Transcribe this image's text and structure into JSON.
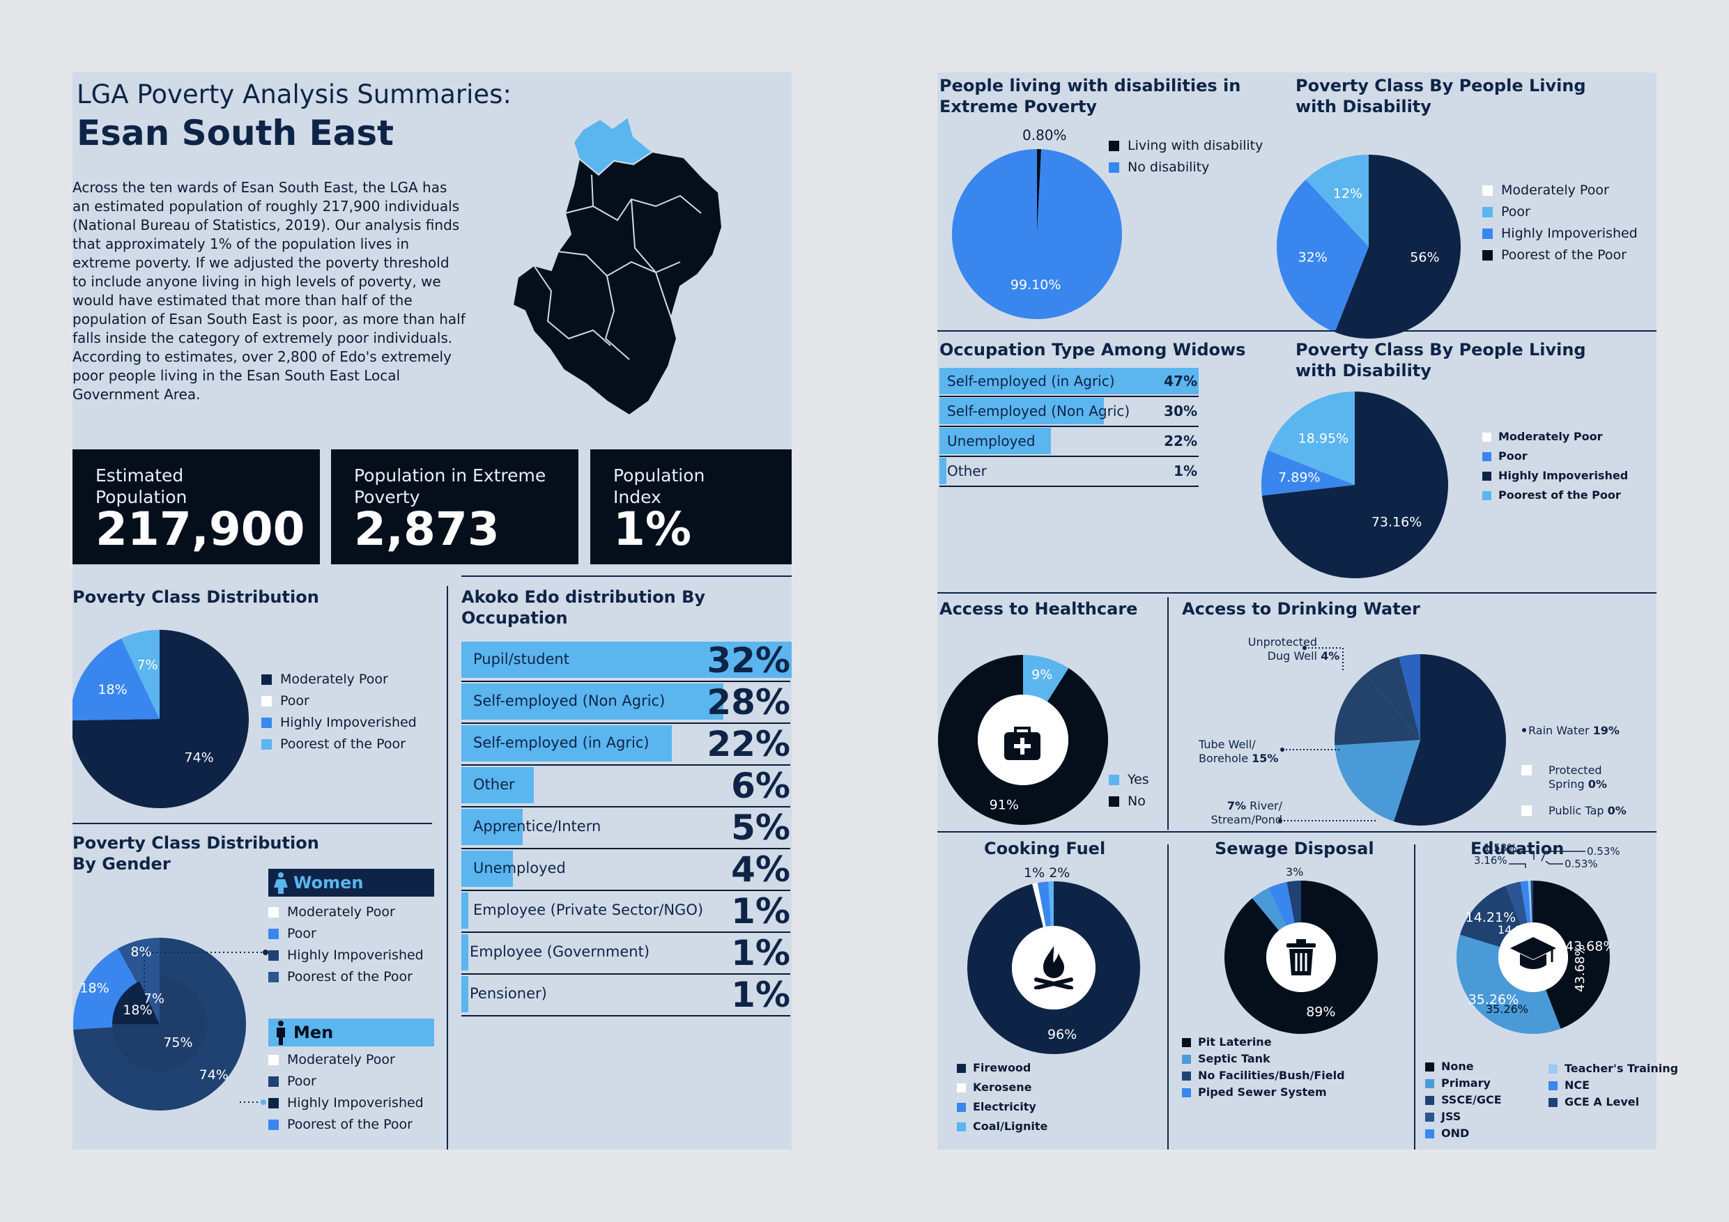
{
  "left": {
    "kicker": "LGA Poverty Analysis Summaries:",
    "lga_name": "Esan South East",
    "intro": "Across the ten wards of Esan South East, the LGA has an estimated population of roughly 217,900 individuals (National Bureau of Statistics, 2019). Our analysis finds that approximately 1% of the population lives in extreme poverty. If we adjusted the poverty threshold to include anyone living in high levels of poverty, we would have estimated that more than half of the population of Esan South East is poor, as more than half falls inside the category of extremely poor individuals. According to estimates, over 2,800 of Edo's extremely poor people living in the Esan South East Local Government Area.",
    "stats": [
      {
        "label": "Estimated Population",
        "value": "217,900"
      },
      {
        "label": "Population in Extreme Poverty",
        "value": "2,873"
      },
      {
        "label": "Population Index",
        "value": "1%"
      }
    ],
    "map_icon": "lga-map-silhouette"
  },
  "colors": {
    "navy": "#0e2447",
    "black": "#050f1c",
    "blue": "#3a86ef",
    "light_blue": "#5bb5ef",
    "mid_blue": "#1f4272",
    "white": "#ffffff",
    "bg": "#d1dbe7"
  },
  "chart_data": [
    {
      "id": "poverty-class-distribution",
      "type": "pie",
      "title": "Poverty Class Distribution",
      "legend": [
        "Moderately Poor",
        "Poor",
        "Highly Impoverished",
        "Poorest of the Poor"
      ],
      "legend_colors": [
        "#0e2447",
        "#ffffff",
        "#3a86ef",
        "#5bb5ef"
      ],
      "slices": [
        {
          "value": 74,
          "label": "74%",
          "color": "#0e2447"
        },
        {
          "value": 18,
          "label": "18%",
          "color": "#3a86ef"
        },
        {
          "value": 7,
          "label": "7%",
          "color": "#5bb5ef"
        }
      ]
    },
    {
      "id": "poverty-class-by-gender",
      "type": "pie",
      "title": "Poverty Class Distribution By Gender",
      "groups": [
        {
          "name": "Women",
          "legend": [
            "Moderately Poor",
            "Poor",
            "Highly Impoverished",
            "Poorest of the Poor"
          ],
          "legend_colors": [
            "#ffffff",
            "#3a86ef",
            "#1f4272",
            "#2a5592"
          ],
          "slices": [
            {
              "value": 75,
              "label": "75%",
              "color": "#1f3d6b"
            },
            {
              "value": 18,
              "label": "18%",
              "color": "#0e2447"
            },
            {
              "value": 7,
              "label": "7%",
              "color": "#2a5592"
            }
          ]
        },
        {
          "name": "Men",
          "legend": [
            "Moderately Poor",
            "Poor",
            "Highly Impoverished",
            "Poorest of the Poor"
          ],
          "legend_colors": [
            "#ffffff",
            "#1f4272",
            "#0e2447",
            "#3a86ef"
          ],
          "slices": [
            {
              "value": 74,
              "label": "74%",
              "color": "#1f4272"
            },
            {
              "value": 18,
              "label": "18%",
              "color": "#3a86ef"
            },
            {
              "value": 8,
              "label": "8%",
              "color": "#2a5592"
            }
          ]
        }
      ]
    },
    {
      "id": "occupation-distribution",
      "type": "bar",
      "title": "Akoko Edo distribution By Occupation",
      "categories": [
        "Pupil/student",
        "Self-employed (Non Agric)",
        "Self-employed (in Agric)",
        "Other",
        "Apprentice/Intern",
        "Unemployed",
        "Employee (Private Sector/NGO)",
        "Employee (Government)",
        "Pensioner)"
      ],
      "values": [
        32,
        28,
        22,
        6,
        5,
        4,
        1,
        1,
        1
      ],
      "labels": [
        "32%",
        "28%",
        "22%",
        "6%",
        "5%",
        "4%",
        "1%",
        "1%",
        "1%"
      ]
    },
    {
      "id": "disability-extreme-poverty",
      "type": "pie",
      "title": "People living with disabilities in Extreme Poverty",
      "legend": [
        "Living with disability",
        "No disability"
      ],
      "legend_colors": [
        "#050f1c",
        "#3a86ef"
      ],
      "slices": [
        {
          "value": 0.8,
          "label": "0.80%",
          "color": "#050f1c"
        },
        {
          "value": 99.1,
          "label": "99.10%",
          "color": "#3a86ef"
        }
      ]
    },
    {
      "id": "poverty-class-disability-1",
      "type": "pie",
      "title": "Poverty Class By People Living with Disability",
      "legend": [
        "Moderately Poor",
        "Poor",
        "Highly Impoverished",
        "Poorest of the Poor"
      ],
      "legend_colors": [
        "#ffffff",
        "#5bb5ef",
        "#3a86ef",
        "#050f1c"
      ],
      "slices": [
        {
          "value": 56,
          "label": "56%",
          "color": "#0e2447"
        },
        {
          "value": 32,
          "label": "32%",
          "color": "#3a86ef"
        },
        {
          "value": 12,
          "label": "12%",
          "color": "#5bb5ef"
        }
      ]
    },
    {
      "id": "widow-occupation",
      "type": "bar",
      "title": "Occupation Type Among Widows",
      "categories": [
        "Self-employed (in Agric)",
        "Self-employed (Non Agric)",
        "Unemployed",
        "Other"
      ],
      "values": [
        47,
        30,
        22,
        1
      ],
      "labels": [
        "47%",
        "30%",
        "22%",
        "1%"
      ]
    },
    {
      "id": "poverty-class-disability-2",
      "type": "pie",
      "title": "Poverty Class By People Living with Disability",
      "legend": [
        "Moderately Poor",
        "Poor",
        "Highly Impoverished",
        "Poorest of the Poor"
      ],
      "legend_colors": [
        "#ffffff",
        "#3a86ef",
        "#0e2447",
        "#5bb5ef"
      ],
      "slices": [
        {
          "value": 73.16,
          "label": "73.16%",
          "color": "#0e2447"
        },
        {
          "value": 7.89,
          "label": "7.89%",
          "color": "#3a86ef"
        },
        {
          "value": 18.95,
          "label": "18.95%",
          "color": "#5bb5ef"
        }
      ]
    },
    {
      "id": "healthcare-access",
      "type": "pie",
      "title": "Access to Healthcare",
      "legend": [
        "Yes",
        "No"
      ],
      "legend_colors": [
        "#5bb5ef",
        "#050f1c"
      ],
      "slices": [
        {
          "value": 9,
          "label": "9%",
          "color": "#5bb5ef"
        },
        {
          "value": 91,
          "label": "91%",
          "color": "#050f1c"
        }
      ]
    },
    {
      "id": "drinking-water",
      "type": "pie",
      "title": "Access to Drinking Water",
      "slices": [
        {
          "value": 55,
          "name": "Rain Water",
          "color": "#0e2447"
        },
        {
          "value": 19,
          "name": "Rain Water",
          "color": "#4a9ad8"
        },
        {
          "value": 15,
          "name": "Tube Well/ Borehole",
          "color": "#23436c"
        },
        {
          "value": 7,
          "name": "River/ Stream/Pond",
          "color": "#23436c"
        },
        {
          "value": 4,
          "name": "Unprotected Dug Well",
          "color": "#2a63c0"
        }
      ],
      "annotations": {
        "unprotected": {
          "text": "Unprotected Dug Well",
          "pct": "4%"
        },
        "rain": {
          "text": "Rain Water",
          "pct": "19%"
        },
        "tube": {
          "text": "Tube Well/ Borehole",
          "pct": "15%"
        },
        "river": {
          "pct": "7%",
          "text": "River/ Stream/Pond"
        },
        "protected": {
          "text": "Protected Spring",
          "pct": "0%"
        },
        "tap": {
          "text": "Public Tap",
          "pct": "0%"
        }
      }
    },
    {
      "id": "cooking-fuel",
      "type": "pie",
      "title": "Cooking Fuel",
      "legend": [
        "Firewood",
        "Kerosene",
        "Electricity",
        "Coal/Lignite"
      ],
      "legend_colors": [
        "#0e2447",
        "#ffffff",
        "#3a86ef",
        "#5bb5ef"
      ],
      "slices": [
        {
          "value": 96,
          "label": "96%",
          "color": "#0e2447"
        },
        {
          "value": 1,
          "label": "1%",
          "color": "#ffffff"
        },
        {
          "value": 2,
          "label": "2%",
          "color": "#3a86ef"
        },
        {
          "value": 1,
          "label": "",
          "color": "#5bb5ef"
        }
      ]
    },
    {
      "id": "sewage-disposal",
      "type": "pie",
      "title": "Sewage Disposal",
      "legend": [
        "Pit Laterine",
        "Septic Tank",
        "No Facilities/Bush/Field",
        "Piped Sewer System"
      ],
      "legend_colors": [
        "#050f1c",
        "#4a9ad8",
        "#1f4272",
        "#3a86ef"
      ],
      "slices": [
        {
          "value": 89,
          "label": "89%",
          "color": "#050f1c"
        },
        {
          "value": 4,
          "label": "4%",
          "color": "#4a9ad8"
        },
        {
          "value": 4,
          "label": "4%",
          "color": "#3a86ef"
        },
        {
          "value": 3,
          "label": "3%",
          "color": "#1f4272"
        }
      ]
    },
    {
      "id": "education",
      "type": "pie",
      "title": "Education",
      "legend": [
        "None",
        "Primary",
        "SSCE/GCE",
        "JSS",
        "OND",
        "Teacher's Training",
        "NCE",
        "GCE A Level"
      ],
      "legend_colors": [
        "#050f1c",
        "#4a9ad8",
        "#1f4272",
        "#2a5592",
        "#3a86ef",
        "#9cc8f2",
        "#3a86ef",
        "#1f4272"
      ],
      "slices": [
        {
          "value": 43.68,
          "label": "43.68%",
          "color": "#050f1c"
        },
        {
          "value": 35.26,
          "label": "35.26%",
          "color": "#4a9ad8"
        },
        {
          "value": 14.21,
          "label": "14.21%",
          "color": "#1f4272"
        },
        {
          "value": 3.16,
          "label": "3.16%",
          "color": "#2a5592"
        },
        {
          "value": 1.58,
          "label": "1.58%",
          "color": "#3a86ef"
        },
        {
          "value": 0.53,
          "label": "0.53%",
          "color": "#9cc8f2"
        },
        {
          "value": 0.53,
          "label": "0.53%",
          "color": "#1f4272"
        }
      ]
    }
  ]
}
